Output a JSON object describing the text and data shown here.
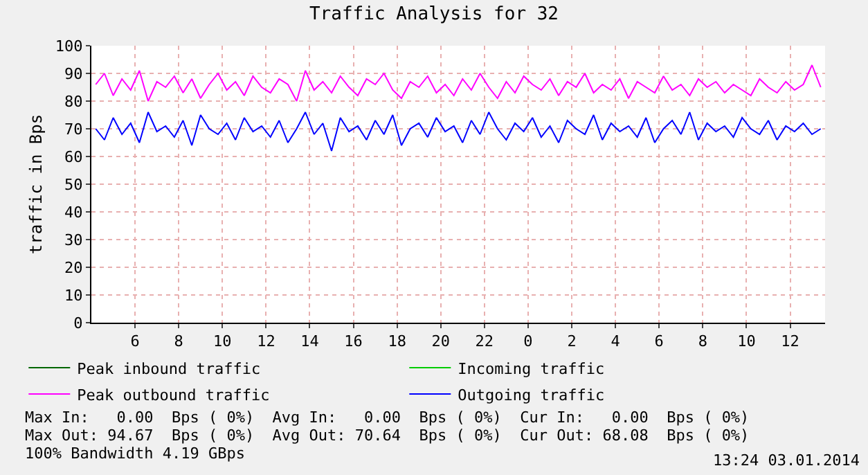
{
  "chart_data": {
    "type": "line",
    "title": "Traffic Analysis for 32",
    "ylabel": "traffic in Bps",
    "x": [
      "2014-01-02T04:12",
      "2014-01-02T04:36",
      "2014-01-02T05:00",
      "2014-01-02T05:24",
      "2014-01-02T05:48",
      "2014-01-02T06:12",
      "2014-01-02T06:36",
      "2014-01-02T07:00",
      "2014-01-02T07:24",
      "2014-01-02T07:48",
      "2014-01-02T08:12",
      "2014-01-02T08:36",
      "2014-01-02T09:00",
      "2014-01-02T09:24",
      "2014-01-02T09:48",
      "2014-01-02T10:12",
      "2014-01-02T10:36",
      "2014-01-02T11:00",
      "2014-01-02T11:24",
      "2014-01-02T11:48",
      "2014-01-02T12:12",
      "2014-01-02T12:36",
      "2014-01-02T13:00",
      "2014-01-02T13:24",
      "2014-01-02T13:48",
      "2014-01-02T14:12",
      "2014-01-02T14:36",
      "2014-01-02T15:00",
      "2014-01-02T15:24",
      "2014-01-02T15:48",
      "2014-01-02T16:12",
      "2014-01-02T16:36",
      "2014-01-02T17:00",
      "2014-01-02T17:24",
      "2014-01-02T17:48",
      "2014-01-02T18:12",
      "2014-01-02T18:36",
      "2014-01-02T19:00",
      "2014-01-02T19:24",
      "2014-01-02T19:48",
      "2014-01-02T20:12",
      "2014-01-02T20:36",
      "2014-01-02T21:00",
      "2014-01-02T21:24",
      "2014-01-02T21:48",
      "2014-01-02T22:12",
      "2014-01-02T22:36",
      "2014-01-02T23:00",
      "2014-01-02T23:24",
      "2014-01-02T23:48",
      "2014-01-03T00:12",
      "2014-01-03T00:36",
      "2014-01-03T01:00",
      "2014-01-03T01:24",
      "2014-01-03T01:48",
      "2014-01-03T02:12",
      "2014-01-03T02:36",
      "2014-01-03T03:00",
      "2014-01-03T03:24",
      "2014-01-03T03:48",
      "2014-01-03T04:12",
      "2014-01-03T04:36",
      "2014-01-03T05:00",
      "2014-01-03T05:24",
      "2014-01-03T05:48",
      "2014-01-03T06:12",
      "2014-01-03T06:36",
      "2014-01-03T07:00",
      "2014-01-03T07:24",
      "2014-01-03T07:48",
      "2014-01-03T08:12",
      "2014-01-03T08:36",
      "2014-01-03T09:00",
      "2014-01-03T09:24",
      "2014-01-03T09:48",
      "2014-01-03T10:12",
      "2014-01-03T10:36",
      "2014-01-03T11:00",
      "2014-01-03T11:24",
      "2014-01-03T11:48",
      "2014-01-03T12:12",
      "2014-01-03T12:36",
      "2014-01-03T13:00",
      "2014-01-03T13:24"
    ],
    "series": [
      {
        "name": "Peak inbound traffic",
        "color": "#006600",
        "values": [
          null,
          null,
          null,
          null,
          null,
          null,
          null,
          null,
          null,
          null,
          null,
          null,
          null,
          null,
          null,
          null,
          null,
          null,
          null,
          null,
          null,
          null,
          null,
          null,
          null,
          null,
          null,
          null,
          null,
          null,
          null,
          null,
          null,
          null,
          null,
          null,
          null,
          null,
          null,
          null,
          null,
          null,
          null,
          null,
          null,
          null,
          null,
          null,
          null,
          null,
          null,
          null,
          null,
          null,
          null,
          null,
          null,
          null,
          null,
          null,
          null,
          null,
          null,
          null,
          null,
          null,
          null,
          null,
          null,
          null,
          null,
          null,
          null,
          null,
          null,
          null,
          null,
          null,
          null,
          null,
          null,
          null,
          null,
          null
        ]
      },
      {
        "name": "Incoming traffic",
        "color": "#00cc00",
        "values": [
          null,
          null,
          null,
          null,
          null,
          null,
          null,
          null,
          null,
          null,
          null,
          null,
          null,
          null,
          null,
          null,
          null,
          null,
          null,
          null,
          null,
          null,
          null,
          null,
          null,
          null,
          null,
          null,
          null,
          null,
          null,
          null,
          null,
          null,
          null,
          null,
          null,
          null,
          null,
          null,
          null,
          null,
          null,
          null,
          null,
          null,
          null,
          null,
          null,
          null,
          null,
          null,
          null,
          null,
          null,
          null,
          null,
          null,
          null,
          null,
          null,
          null,
          null,
          null,
          null,
          null,
          null,
          null,
          null,
          null,
          null,
          null,
          null,
          null,
          null,
          null,
          null,
          null,
          null,
          null,
          null,
          null,
          null,
          null
        ]
      },
      {
        "name": "Peak outbound traffic",
        "color": "#ff00ff",
        "values": [
          86,
          90,
          82,
          88,
          84,
          91,
          80,
          87,
          85,
          89,
          83,
          88,
          81,
          86,
          90,
          84,
          87,
          82,
          89,
          85,
          83,
          88,
          86,
          80,
          91,
          84,
          87,
          83,
          89,
          85,
          82,
          88,
          86,
          90,
          84,
          81,
          87,
          85,
          89,
          83,
          86,
          82,
          88,
          84,
          90,
          85,
          81,
          87,
          83,
          89,
          86,
          84,
          88,
          82,
          87,
          85,
          90,
          83,
          86,
          84,
          88,
          81,
          87,
          85,
          83,
          89,
          84,
          86,
          82,
          88,
          85,
          87,
          83,
          86,
          84,
          82,
          88,
          85,
          83,
          87,
          84,
          86,
          93,
          85
        ]
      },
      {
        "name": "Outgoing traffic",
        "color": "#0000ff",
        "values": [
          70,
          66,
          74,
          68,
          72,
          65,
          76,
          69,
          71,
          67,
          73,
          64,
          75,
          70,
          68,
          72,
          66,
          74,
          69,
          71,
          67,
          73,
          65,
          70,
          76,
          68,
          72,
          62,
          74,
          69,
          71,
          66,
          73,
          68,
          75,
          64,
          70,
          72,
          67,
          74,
          69,
          71,
          65,
          73,
          68,
          76,
          70,
          66,
          72,
          69,
          74,
          67,
          71,
          65,
          73,
          70,
          68,
          75,
          66,
          72,
          69,
          71,
          67,
          74,
          65,
          70,
          73,
          68,
          76,
          66,
          72,
          69,
          71,
          67,
          74,
          70,
          68,
          73,
          66,
          71,
          69,
          72,
          68,
          70
        ]
      }
    ],
    "xlim": [
      "2014-01-02T04:00",
      "2014-01-03T13:36"
    ],
    "xticks": [
      {
        "value": "2014-01-02T06:00",
        "label": "6"
      },
      {
        "value": "2014-01-02T08:00",
        "label": "8"
      },
      {
        "value": "2014-01-02T10:00",
        "label": "10"
      },
      {
        "value": "2014-01-02T12:00",
        "label": "12"
      },
      {
        "value": "2014-01-02T14:00",
        "label": "14"
      },
      {
        "value": "2014-01-02T16:00",
        "label": "16"
      },
      {
        "value": "2014-01-02T18:00",
        "label": "18"
      },
      {
        "value": "2014-01-02T20:00",
        "label": "20"
      },
      {
        "value": "2014-01-02T22:00",
        "label": "22"
      },
      {
        "value": "2014-01-03T00:00",
        "label": "0"
      },
      {
        "value": "2014-01-03T02:00",
        "label": "2"
      },
      {
        "value": "2014-01-03T04:00",
        "label": "4"
      },
      {
        "value": "2014-01-03T06:00",
        "label": "6"
      },
      {
        "value": "2014-01-03T08:00",
        "label": "8"
      },
      {
        "value": "2014-01-03T10:00",
        "label": "10"
      },
      {
        "value": "2014-01-03T12:00",
        "label": "12"
      }
    ],
    "ylim": [
      0,
      100
    ],
    "yticks": [
      0,
      10,
      20,
      30,
      40,
      50,
      60,
      70,
      80,
      90,
      100
    ],
    "grid": true,
    "legend": "bottom",
    "marker": "none",
    "line_style": "solid",
    "annotations": [
      "Max In:   0.00  Bps ( 0%)  Avg In:   0.00  Bps ( 0%)  Cur In:   0.00  Bps ( 0%)",
      "Max Out: 94.67  Bps ( 0%)  Avg Out: 70.64  Bps ( 0%)  Cur Out: 68.08  Bps ( 0%)",
      "100% Bandwidth 4.19 GBps",
      "13:24 03.01.2014"
    ]
  }
}
